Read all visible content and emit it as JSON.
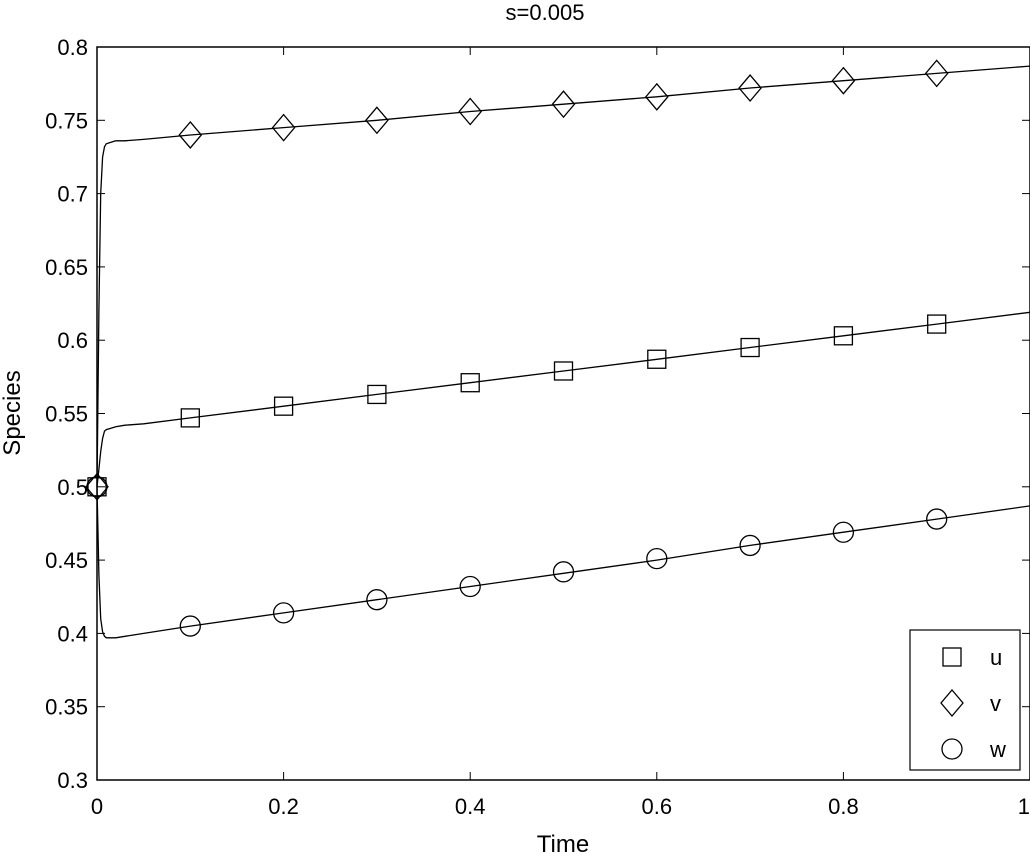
{
  "chart_data": {
    "type": "line",
    "title": "s=0.005",
    "xlabel": "Time",
    "ylabel": "Species",
    "xlim": [
      0,
      1
    ],
    "ylim": [
      0.3,
      0.8
    ],
    "x_ticks": [
      0,
      0.2,
      0.4,
      0.6,
      0.8,
      1
    ],
    "y_ticks": [
      0.3,
      0.35,
      0.4,
      0.45,
      0.5,
      0.55,
      0.6,
      0.65,
      0.7,
      0.75,
      0.8
    ],
    "x_tick_labels": [
      "0",
      "0.2",
      "0.4",
      "0.6",
      "0.8",
      "1"
    ],
    "y_tick_labels": [
      "0.3",
      "0.35",
      "0.4",
      "0.45",
      "0.5",
      "0.55",
      "0.6",
      "0.65",
      "0.7",
      "0.75",
      "0.8"
    ],
    "grid": false,
    "legend_position": "bottom-right",
    "line_color": "#000000",
    "series": [
      {
        "name": "u",
        "marker": "square",
        "line": {
          "x": [
            0,
            0.002,
            0.004,
            0.006,
            0.008,
            0.01,
            0.015,
            0.02,
            0.03,
            0.05,
            0.1,
            0.2,
            0.3,
            0.4,
            0.5,
            0.6,
            0.7,
            0.8,
            0.9,
            1.0
          ],
          "y": [
            0.5,
            0.512,
            0.524,
            0.533,
            0.538,
            0.539,
            0.54,
            0.541,
            0.542,
            0.543,
            0.547,
            0.555,
            0.563,
            0.571,
            0.579,
            0.587,
            0.595,
            0.603,
            0.611,
            0.619
          ]
        },
        "markers": {
          "x": [
            0,
            0.1,
            0.2,
            0.3,
            0.4,
            0.5,
            0.6,
            0.7,
            0.8,
            0.9
          ],
          "y": [
            0.5,
            0.547,
            0.555,
            0.563,
            0.571,
            0.579,
            0.587,
            0.595,
            0.603,
            0.611
          ]
        }
      },
      {
        "name": "v",
        "marker": "diamond",
        "line": {
          "x": [
            0,
            0.002,
            0.004,
            0.006,
            0.008,
            0.01,
            0.015,
            0.02,
            0.03,
            0.05,
            0.1,
            0.2,
            0.3,
            0.4,
            0.5,
            0.6,
            0.7,
            0.8,
            0.9,
            1.0
          ],
          "y": [
            0.5,
            0.62,
            0.7,
            0.725,
            0.732,
            0.734,
            0.735,
            0.736,
            0.736,
            0.737,
            0.74,
            0.745,
            0.75,
            0.756,
            0.761,
            0.766,
            0.772,
            0.777,
            0.782,
            0.787
          ]
        },
        "markers": {
          "x": [
            0,
            0.1,
            0.2,
            0.3,
            0.4,
            0.5,
            0.6,
            0.7,
            0.8,
            0.9
          ],
          "y": [
            0.5,
            0.74,
            0.745,
            0.75,
            0.756,
            0.761,
            0.766,
            0.772,
            0.777,
            0.782
          ]
        }
      },
      {
        "name": "w",
        "marker": "circle",
        "line": {
          "x": [
            0,
            0.002,
            0.004,
            0.006,
            0.008,
            0.01,
            0.015,
            0.02,
            0.03,
            0.05,
            0.1,
            0.2,
            0.3,
            0.4,
            0.5,
            0.6,
            0.7,
            0.8,
            0.9,
            1.0
          ],
          "y": [
            0.5,
            0.44,
            0.41,
            0.401,
            0.398,
            0.397,
            0.397,
            0.397,
            0.398,
            0.4,
            0.405,
            0.414,
            0.423,
            0.432,
            0.441,
            0.45,
            0.46,
            0.469,
            0.478,
            0.487
          ]
        },
        "markers": {
          "x": [
            0,
            0.1,
            0.2,
            0.3,
            0.4,
            0.5,
            0.6,
            0.7,
            0.8,
            0.9
          ],
          "y": [
            0.5,
            0.405,
            0.414,
            0.423,
            0.432,
            0.442,
            0.451,
            0.46,
            0.469,
            0.478
          ]
        }
      }
    ]
  }
}
